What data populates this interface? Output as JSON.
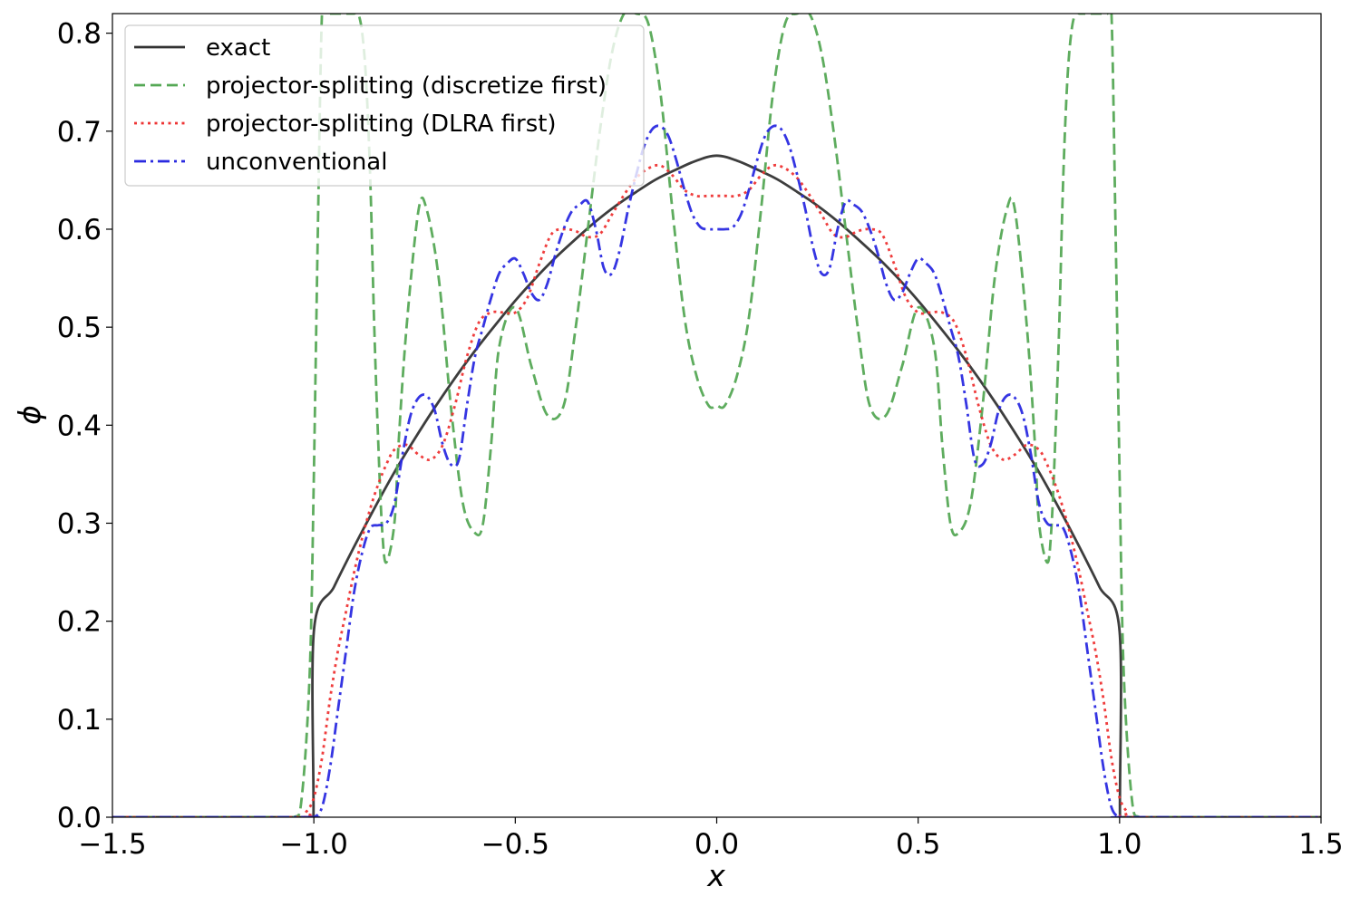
{
  "chart_data": {
    "type": "line",
    "title": "",
    "xlabel": "x",
    "ylabel": "ϕ",
    "xlim": [
      -1.5,
      1.5
    ],
    "ylim": [
      0.0,
      0.82
    ],
    "x_ticks": [
      -1.5,
      -1.0,
      -0.5,
      0.0,
      0.5,
      1.0,
      1.5
    ],
    "x_tick_labels": [
      "−1.5",
      "−1.0",
      "−0.5",
      "0.0",
      "0.5",
      "1.0",
      "1.5"
    ],
    "y_ticks": [
      0.0,
      0.1,
      0.2,
      0.3,
      0.4,
      0.5,
      0.6,
      0.7,
      0.8
    ],
    "y_tick_labels": [
      "0.0",
      "0.1",
      "0.2",
      "0.3",
      "0.4",
      "0.5",
      "0.6",
      "0.7",
      "0.8"
    ],
    "grid": false,
    "legend_position": "top-left",
    "series": [
      {
        "name": "exact",
        "color": "#333333",
        "dash": "solid",
        "symmetric": true,
        "x": [
          -1.5,
          -1.012,
          -1.001,
          -1.0,
          -0.95,
          -0.9,
          -0.85,
          -0.8,
          -0.75,
          -0.7,
          -0.65,
          -0.6,
          -0.55,
          -0.5,
          -0.45,
          -0.4,
          -0.35,
          -0.3,
          -0.25,
          -0.2,
          -0.15,
          -0.1,
          -0.05,
          0.0
        ],
        "y": [
          0.0,
          0.0,
          0.0,
          0.19,
          0.235,
          0.276,
          0.315,
          0.352,
          0.386,
          0.418,
          0.448,
          0.476,
          0.502,
          0.527,
          0.55,
          0.571,
          0.59,
          0.608,
          0.624,
          0.638,
          0.651,
          0.661,
          0.67,
          0.675
        ]
      },
      {
        "name": "projector-splitting (discretize first)",
        "color": "#55a855",
        "dash": "dashed",
        "symmetric": true,
        "x": [
          -1.5,
          -1.1,
          -1.05,
          -1.03,
          -1.01,
          -1.0,
          -0.99,
          -0.98,
          -0.97,
          -0.96,
          -0.95,
          -0.94,
          -0.93,
          -0.92,
          -0.91,
          -0.9,
          -0.89,
          -0.88,
          -0.87,
          -0.86,
          -0.85,
          -0.84,
          -0.83,
          -0.82,
          -0.8,
          -0.79,
          -0.77,
          -0.74,
          -0.72,
          -0.69,
          -0.66,
          -0.63,
          -0.6,
          -0.58,
          -0.56,
          -0.54,
          -0.5,
          -0.46,
          -0.42,
          -0.38,
          -0.35,
          -0.32,
          -0.29,
          -0.26,
          -0.23,
          -0.2,
          -0.17,
          -0.14,
          -0.11,
          -0.08,
          -0.05,
          -0.02,
          0.0
        ],
        "y": [
          0.0,
          0.0,
          0.0,
          0.02,
          0.15,
          0.35,
          0.6,
          0.82,
          0.82,
          0.82,
          0.82,
          0.82,
          0.82,
          0.82,
          0.82,
          0.82,
          0.82,
          0.8,
          0.75,
          0.65,
          0.5,
          0.38,
          0.29,
          0.26,
          0.3,
          0.38,
          0.5,
          0.62,
          0.62,
          0.55,
          0.42,
          0.32,
          0.29,
          0.3,
          0.38,
          0.48,
          0.52,
          0.46,
          0.41,
          0.42,
          0.5,
          0.6,
          0.7,
          0.78,
          0.82,
          0.82,
          0.81,
          0.74,
          0.62,
          0.51,
          0.45,
          0.42,
          0.42
        ]
      },
      {
        "name": "projector-splitting (DLRA first)",
        "color": "#ee3333",
        "dash": "dotted",
        "symmetric": true,
        "x": [
          -1.5,
          -1.04,
          -1.02,
          -1.0,
          -0.98,
          -0.96,
          -0.94,
          -0.92,
          -0.9,
          -0.88,
          -0.86,
          -0.84,
          -0.82,
          -0.8,
          -0.77,
          -0.74,
          -0.71,
          -0.68,
          -0.65,
          -0.62,
          -0.59,
          -0.56,
          -0.53,
          -0.5,
          -0.47,
          -0.44,
          -0.41,
          -0.38,
          -0.35,
          -0.32,
          -0.29,
          -0.26,
          -0.23,
          -0.2,
          -0.17,
          -0.14,
          -0.11,
          -0.08,
          -0.05,
          -0.02,
          0.0
        ],
        "y": [
          0.0,
          0.0,
          0.005,
          0.02,
          0.06,
          0.12,
          0.17,
          0.21,
          0.25,
          0.285,
          0.315,
          0.34,
          0.36,
          0.375,
          0.38,
          0.37,
          0.365,
          0.38,
          0.42,
          0.47,
          0.505,
          0.515,
          0.515,
          0.515,
          0.53,
          0.565,
          0.595,
          0.6,
          0.598,
          0.592,
          0.595,
          0.615,
          0.635,
          0.652,
          0.662,
          0.665,
          0.655,
          0.64,
          0.634,
          0.634,
          0.634
        ]
      },
      {
        "name": "unconventional",
        "color": "#2a2ae0",
        "dash": "dashdot",
        "symmetric": true,
        "x": [
          -1.5,
          -1.02,
          -1.0,
          -0.98,
          -0.96,
          -0.94,
          -0.92,
          -0.9,
          -0.88,
          -0.86,
          -0.84,
          -0.82,
          -0.8,
          -0.78,
          -0.76,
          -0.74,
          -0.72,
          -0.7,
          -0.68,
          -0.66,
          -0.64,
          -0.62,
          -0.6,
          -0.58,
          -0.56,
          -0.54,
          -0.52,
          -0.5,
          -0.48,
          -0.46,
          -0.44,
          -0.42,
          -0.4,
          -0.38,
          -0.36,
          -0.34,
          -0.32,
          -0.3,
          -0.28,
          -0.26,
          -0.24,
          -0.22,
          -0.2,
          -0.18,
          -0.16,
          -0.14,
          -0.12,
          -0.1,
          -0.08,
          -0.06,
          -0.04,
          -0.02,
          0.0
        ],
        "y": [
          0.0,
          0.0,
          0.0,
          0.01,
          0.05,
          0.11,
          0.17,
          0.23,
          0.27,
          0.295,
          0.298,
          0.3,
          0.32,
          0.37,
          0.41,
          0.428,
          0.43,
          0.415,
          0.38,
          0.36,
          0.365,
          0.42,
          0.47,
          0.5,
          0.53,
          0.555,
          0.565,
          0.57,
          0.555,
          0.535,
          0.528,
          0.545,
          0.575,
          0.6,
          0.618,
          0.625,
          0.628,
          0.6,
          0.56,
          0.555,
          0.58,
          0.62,
          0.655,
          0.685,
          0.702,
          0.705,
          0.695,
          0.67,
          0.64,
          0.615,
          0.602,
          0.6,
          0.6
        ]
      }
    ]
  }
}
